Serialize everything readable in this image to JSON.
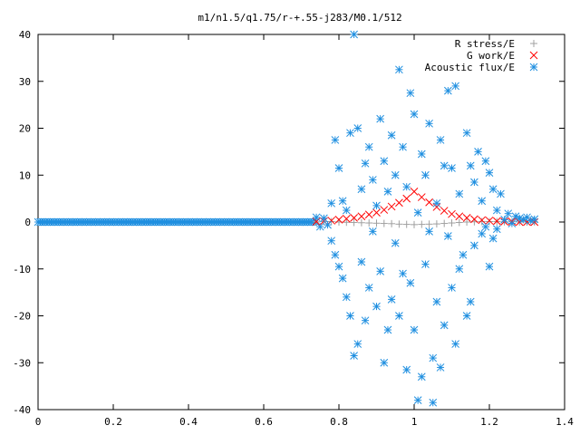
{
  "chart_data": {
    "type": "scatter",
    "title": "m1/n1.5/q1.75/r-+.55-j283/M0.1/512",
    "xlabel": "",
    "ylabel": "",
    "xlim": [
      0,
      1.4
    ],
    "ylim": [
      -40,
      40
    ],
    "x_ticks": [
      "0",
      "0.2",
      "0.4",
      "0.6",
      "0.8",
      "1",
      "1.2",
      "1.4"
    ],
    "y_ticks": [
      "40",
      "30",
      "20",
      "10",
      "0",
      "-10",
      "-20",
      "-30",
      "-40"
    ],
    "grid": false,
    "legend_position": "top-right",
    "series": [
      {
        "name": "R stress/E",
        "marker": "plus",
        "color": "#a0a0a0",
        "points": [
          [
            0.74,
            0.05
          ],
          [
            0.76,
            0.1
          ],
          [
            0.78,
            0.1
          ],
          [
            0.8,
            0.0
          ],
          [
            0.82,
            -0.05
          ],
          [
            0.84,
            -0.1
          ],
          [
            0.86,
            -0.15
          ],
          [
            0.88,
            -0.2
          ],
          [
            0.9,
            -0.25
          ],
          [
            0.92,
            -0.3
          ],
          [
            0.94,
            -0.35
          ],
          [
            0.96,
            -0.45
          ],
          [
            0.98,
            -0.5
          ],
          [
            1.0,
            -0.55
          ],
          [
            1.02,
            -0.5
          ],
          [
            1.04,
            -0.45
          ],
          [
            1.06,
            -0.4
          ],
          [
            1.08,
            -0.3
          ],
          [
            1.1,
            -0.2
          ],
          [
            1.12,
            -0.1
          ],
          [
            1.14,
            0.0
          ],
          [
            1.16,
            0.05
          ],
          [
            1.18,
            0.1
          ],
          [
            1.2,
            0.1
          ],
          [
            1.22,
            0.1
          ],
          [
            1.24,
            0.05
          ],
          [
            1.26,
            0.05
          ],
          [
            1.28,
            0.0
          ],
          [
            1.3,
            0.0
          ],
          [
            1.32,
            0.0
          ]
        ]
      },
      {
        "name": "G work/E",
        "marker": "cross",
        "color": "#ff0000",
        "points": [
          [
            0.74,
            0.1
          ],
          [
            0.76,
            0.2
          ],
          [
            0.78,
            0.3
          ],
          [
            0.8,
            0.5
          ],
          [
            0.82,
            0.7
          ],
          [
            0.84,
            0.9
          ],
          [
            0.86,
            1.2
          ],
          [
            0.88,
            1.6
          ],
          [
            0.9,
            2.0
          ],
          [
            0.92,
            2.6
          ],
          [
            0.94,
            3.3
          ],
          [
            0.96,
            4.1
          ],
          [
            0.98,
            5.0
          ],
          [
            1.0,
            6.5
          ],
          [
            1.02,
            5.3
          ],
          [
            1.04,
            4.2
          ],
          [
            1.06,
            3.2
          ],
          [
            1.08,
            2.4
          ],
          [
            1.1,
            1.7
          ],
          [
            1.12,
            1.2
          ],
          [
            1.14,
            0.9
          ],
          [
            1.16,
            0.6
          ],
          [
            1.18,
            0.4
          ],
          [
            1.2,
            0.3
          ],
          [
            1.22,
            0.2
          ],
          [
            1.24,
            0.1
          ],
          [
            1.26,
            0.1
          ],
          [
            1.28,
            0.0
          ],
          [
            1.3,
            0.0
          ],
          [
            1.32,
            0.0
          ]
        ]
      },
      {
        "name": "Acoustic flux/E",
        "marker": "star",
        "color": "#1f8fe0",
        "points": [
          [
            0.74,
            1.0
          ],
          [
            0.75,
            -1.0
          ],
          [
            0.76,
            0.8
          ],
          [
            0.77,
            -0.6
          ],
          [
            0.78,
            4.0
          ],
          [
            0.78,
            -4.0
          ],
          [
            0.79,
            17.5
          ],
          [
            0.79,
            -7.0
          ],
          [
            0.8,
            11.5
          ],
          [
            0.8,
            -9.5
          ],
          [
            0.81,
            4.5
          ],
          [
            0.81,
            -12.0
          ],
          [
            0.82,
            2.5
          ],
          [
            0.82,
            -16.0
          ],
          [
            0.83,
            19.0
          ],
          [
            0.83,
            -20.0
          ],
          [
            0.84,
            40.0
          ],
          [
            0.84,
            -28.5
          ],
          [
            0.85,
            20.0
          ],
          [
            0.85,
            -26.0
          ],
          [
            0.86,
            -8.5
          ],
          [
            0.86,
            7.0
          ],
          [
            0.87,
            -21.0
          ],
          [
            0.87,
            12.5
          ],
          [
            0.88,
            16.0
          ],
          [
            0.88,
            -14.0
          ],
          [
            0.89,
            -2.0
          ],
          [
            0.89,
            9.0
          ],
          [
            0.9,
            -18.0
          ],
          [
            0.9,
            3.5
          ],
          [
            0.91,
            22.0
          ],
          [
            0.91,
            -10.5
          ],
          [
            0.92,
            -30.0
          ],
          [
            0.92,
            13.0
          ],
          [
            0.93,
            -23.0
          ],
          [
            0.93,
            6.5
          ],
          [
            0.94,
            -16.5
          ],
          [
            0.94,
            18.5
          ],
          [
            0.95,
            -4.5
          ],
          [
            0.95,
            10.0
          ],
          [
            0.96,
            32.5
          ],
          [
            0.96,
            -20.0
          ],
          [
            0.97,
            -11.0
          ],
          [
            0.97,
            16.0
          ],
          [
            0.98,
            -31.5
          ],
          [
            0.98,
            7.5
          ],
          [
            0.99,
            27.5
          ],
          [
            0.99,
            -13.0
          ],
          [
            1.0,
            -23.0
          ],
          [
            1.0,
            23.0
          ],
          [
            1.01,
            -38.0
          ],
          [
            1.01,
            2.0
          ],
          [
            1.02,
            -33.0
          ],
          [
            1.02,
            14.5
          ],
          [
            1.03,
            -9.0
          ],
          [
            1.03,
            10.0
          ],
          [
            1.04,
            -2.0
          ],
          [
            1.04,
            21.0
          ],
          [
            1.05,
            -38.5
          ],
          [
            1.05,
            -29.0
          ],
          [
            1.06,
            -17.0
          ],
          [
            1.06,
            4.0
          ],
          [
            1.07,
            -31.0
          ],
          [
            1.07,
            17.5
          ],
          [
            1.08,
            -22.0
          ],
          [
            1.08,
            12.0
          ],
          [
            1.09,
            28.0
          ],
          [
            1.09,
            -3.0
          ],
          [
            1.1,
            -14.0
          ],
          [
            1.1,
            11.5
          ],
          [
            1.11,
            29.0
          ],
          [
            1.11,
            -26.0
          ],
          [
            1.12,
            -10.0
          ],
          [
            1.12,
            6.0
          ],
          [
            1.13,
            -7.0
          ],
          [
            1.14,
            19.0
          ],
          [
            1.14,
            -20.0
          ],
          [
            1.15,
            12.0
          ],
          [
            1.15,
            -17.0
          ],
          [
            1.16,
            8.5
          ],
          [
            1.16,
            -5.0
          ],
          [
            1.17,
            15.0
          ],
          [
            1.18,
            -2.5
          ],
          [
            1.18,
            4.5
          ],
          [
            1.19,
            13.0
          ],
          [
            1.19,
            -1.0
          ],
          [
            1.2,
            -9.5
          ],
          [
            1.2,
            10.5
          ],
          [
            1.21,
            7.0
          ],
          [
            1.21,
            -3.5
          ],
          [
            1.22,
            2.5
          ],
          [
            1.22,
            -1.5
          ],
          [
            1.23,
            6.0
          ],
          [
            1.24,
            0.5
          ],
          [
            1.25,
            1.8
          ],
          [
            1.26,
            -0.3
          ],
          [
            1.27,
            1.2
          ],
          [
            1.28,
            0.8
          ],
          [
            1.29,
            0.5
          ],
          [
            1.3,
            1.0
          ],
          [
            1.31,
            0.3
          ],
          [
            1.32,
            0.6
          ]
        ]
      }
    ]
  }
}
